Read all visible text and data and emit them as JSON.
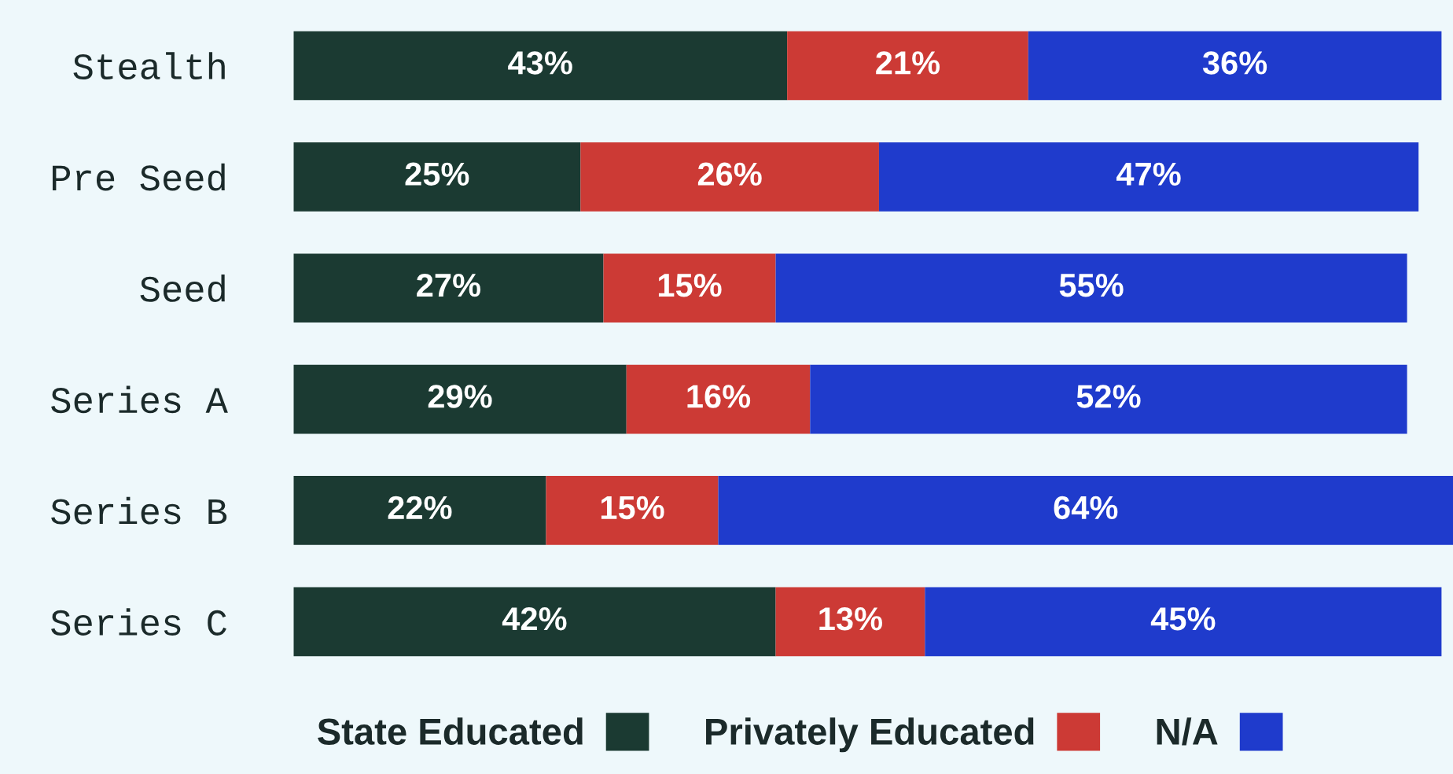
{
  "chart_data": {
    "type": "bar",
    "orientation": "horizontal",
    "stacked": true,
    "legend": "bottom",
    "grid": false,
    "categories": [
      "Stealth",
      "Pre Seed",
      "Seed",
      "Series A",
      "Series B",
      "Series C"
    ],
    "series": [
      {
        "name": "State Educated",
        "color": "#1b3a32",
        "values": [
          43,
          25,
          27,
          29,
          22,
          42
        ],
        "value_labels": [
          "43%",
          "25%",
          "27%",
          "29%",
          "22%",
          "42%"
        ]
      },
      {
        "name": "Privately Educated",
        "color": "#cc3a35",
        "values": [
          21,
          26,
          15,
          16,
          15,
          13
        ],
        "value_labels": [
          "21%",
          "26%",
          "15%",
          "16%",
          "15%",
          "13%"
        ]
      },
      {
        "name": "N/A",
        "color": "#1f3bcc",
        "values": [
          36,
          47,
          55,
          52,
          64,
          45
        ],
        "value_labels": [
          "36%",
          "47%",
          "55%",
          "52%",
          "64%",
          "45%"
        ]
      }
    ]
  }
}
